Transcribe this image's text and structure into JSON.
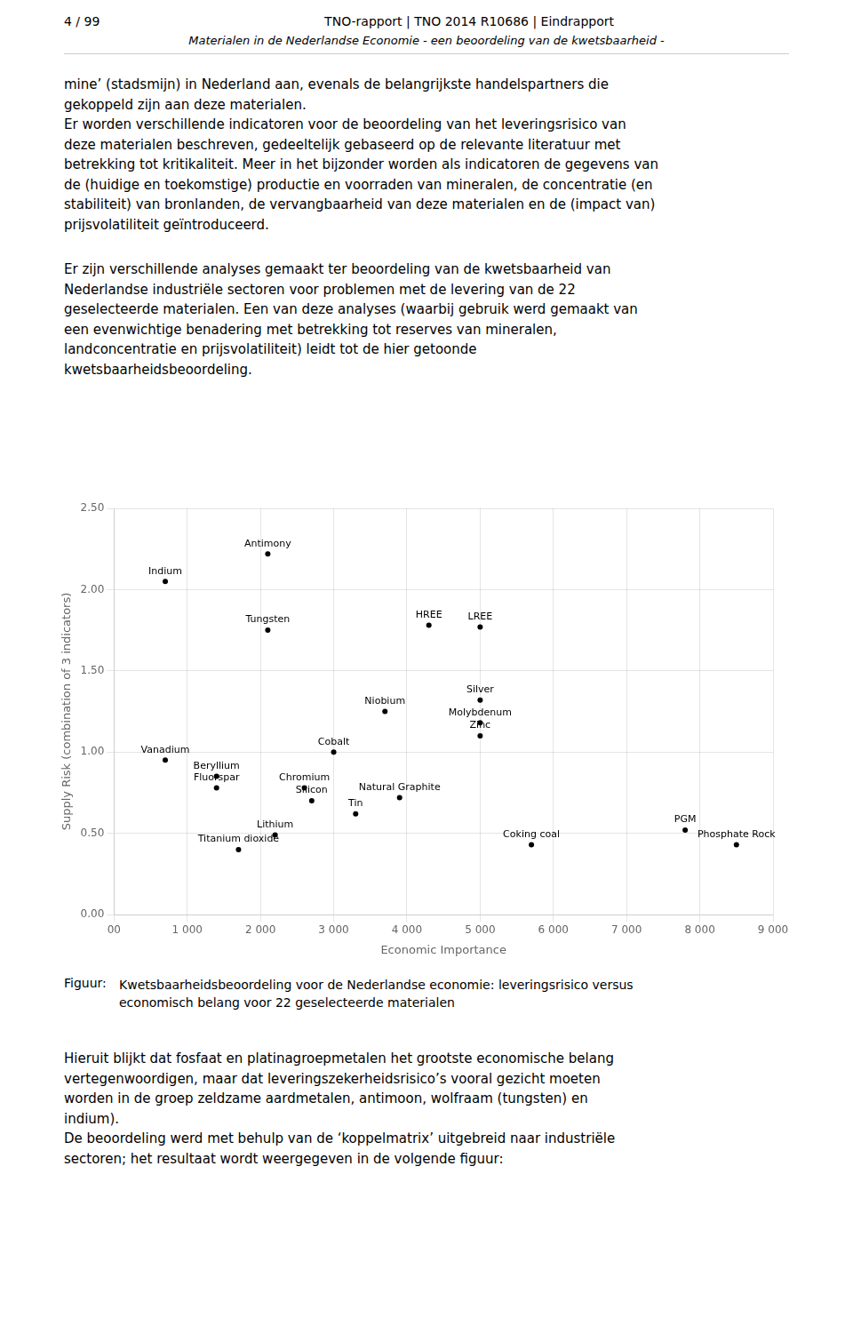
{
  "page_number": "4 / 99",
  "header_title": "TNO-rapport | TNO 2014 R10686 | Eindrapport",
  "header_subtitle": "Materialen in de Nederlandse Economie - een beoordeling van de kwetsbaarheid -",
  "body1_lines": [
    "mine’ (stadsmijn) in Nederland aan, evenals de belangrijkste handelspartners die",
    "gekoppeld zijn aan deze materialen.",
    "Er worden verschillende indicatoren voor de beoordeling van het leveringsrisico van",
    "deze materialen beschreven, gedeeltelijk gebaseerd op de relevante literatuur met",
    "betrekking tot kritikaliteit. Meer in het bijzonder worden als indicatoren de gegevens van",
    "de (huidige en toekomstige) productie en voorraden van mineralen, de concentratie (en",
    "stabiliteit) van bronlanden, de vervangbaarheid van deze materialen en de (impact van)",
    "prijsvolatiliteit geïntroduceerd."
  ],
  "body2_lines": [
    "Er zijn verschillende analyses gemaakt ter beoordeling van de kwetsbaarheid van",
    "Nederlandse industriële sectoren voor problemen met de levering van de 22",
    "geselecteerde materialen. Een van deze analyses (waarbij gebruik werd gemaakt van",
    "een evenwichtige benadering met betrekking tot reserves van mineralen,",
    "landconcentratie en prijsvolatiliteit) leidt tot de hier getoonde",
    "kwetsbaarheidsbeoordeling."
  ],
  "caption_label": "Figuur:",
  "caption_lines": [
    "Kwetsbaarheidsbeoordeling voor de Nederlandse economie: leveringsrisico versus",
    "economisch belang voor 22 geselecteerde materialen"
  ],
  "body3_lines": [
    "Hieruit blijkt dat fosfaat en platinagroepmetalen het grootste economische belang",
    "vertegenwoordigen, maar dat leveringszekerheidsrisico’s vooral gezicht moeten",
    "worden in de groep zeldzame aardmetalen, antimoon, wolfraam (tungsten) en",
    "indium).",
    "De beoordeling werd met behulp van de ‘koppelmatrix’ uitgebreid naar industriële",
    "sectoren; het resultaat wordt weergegeven in de volgende figuur:"
  ],
  "chart_data": {
    "type": "scatter",
    "xlabel": "Economic Importance",
    "ylabel": "Supply Risk (combination of 3 indicators)",
    "labels": [
      "Indium",
      "Antimony",
      "Tungsten",
      "HREE",
      "LREE",
      "Silver",
      "Niobium",
      "Molybdenum",
      "Zinc",
      "Cobalt",
      "Vanadium",
      "Beryllium",
      "Fluorspar",
      "Chromium",
      "Natural Graphite",
      "Silicon",
      "Tin",
      "Lithium",
      "Titanium dioxide",
      "Coking coal",
      "PGM",
      "Phosphate Rock"
    ],
    "x": [
      700,
      2100,
      2100,
      4300,
      5000,
      5000,
      3700,
      5000,
      5000,
      3000,
      700,
      1400,
      1400,
      2600,
      3900,
      2700,
      3300,
      2200,
      1700,
      5700,
      7800,
      8500
    ],
    "values": [
      2.05,
      2.22,
      1.75,
      1.78,
      1.77,
      1.32,
      1.25,
      1.18,
      1.1,
      1.0,
      0.95,
      0.85,
      0.78,
      0.78,
      0.72,
      0.7,
      0.62,
      0.49,
      0.4,
      0.43,
      0.52,
      0.43
    ],
    "color": "#000000",
    "xlim": [
      0,
      9000
    ],
    "ylim": [
      0.0,
      2.5
    ],
    "xticks": [
      {
        "value": 0,
        "label": "00"
      },
      {
        "value": 1000,
        "label": "1 000"
      },
      {
        "value": 2000,
        "label": "2 000"
      },
      {
        "value": 3000,
        "label": "3 000"
      },
      {
        "value": 4000,
        "label": "4 000"
      },
      {
        "value": 5000,
        "label": "5 000"
      },
      {
        "value": 6000,
        "label": "6 000"
      },
      {
        "value": 7000,
        "label": "7 000"
      },
      {
        "value": 8000,
        "label": "8 000"
      },
      {
        "value": 9000,
        "label": "9 000"
      }
    ],
    "yticks": [
      {
        "value": 0.0,
        "label": "0.00"
      },
      {
        "value": 0.5,
        "label": "0.50"
      },
      {
        "value": 1.0,
        "label": "1.00"
      },
      {
        "value": 1.5,
        "label": "1.50"
      },
      {
        "value": 2.0,
        "label": "2.00"
      },
      {
        "value": 2.5,
        "label": "2.50"
      }
    ],
    "grid": true
  }
}
